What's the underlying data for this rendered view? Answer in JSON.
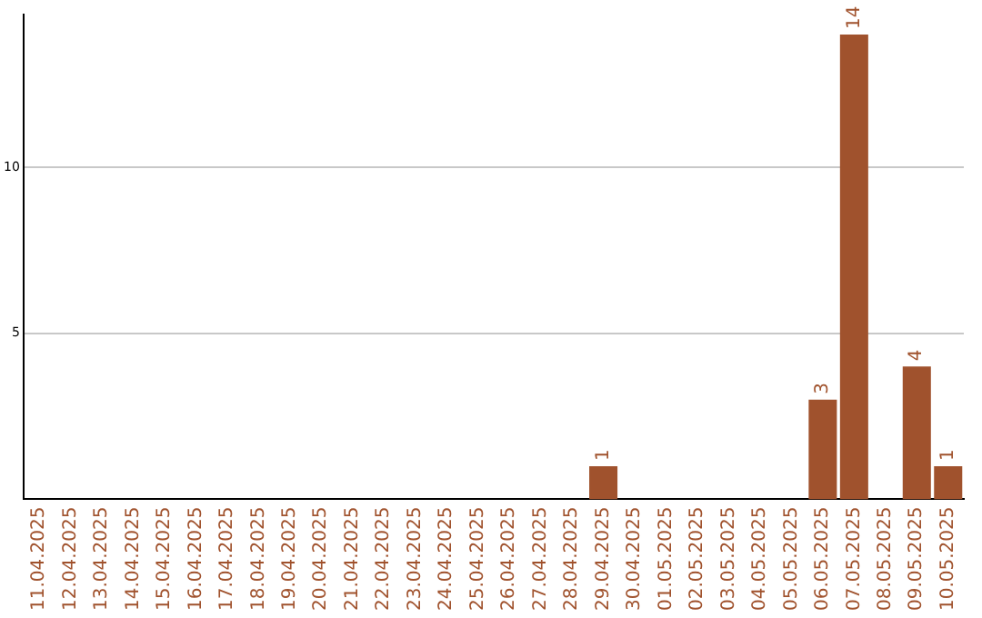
{
  "chart_data": {
    "type": "bar",
    "categories": [
      "11.04.2025",
      "12.04.2025",
      "13.04.2025",
      "14.04.2025",
      "15.04.2025",
      "16.04.2025",
      "17.04.2025",
      "18.04.2025",
      "19.04.2025",
      "20.04.2025",
      "21.04.2025",
      "22.04.2025",
      "23.04.2025",
      "24.04.2025",
      "25.04.2025",
      "26.04.2025",
      "27.04.2025",
      "28.04.2025",
      "29.04.2025",
      "30.04.2025",
      "01.05.2025",
      "02.05.2025",
      "03.05.2025",
      "04.05.2025",
      "05.05.2025",
      "06.05.2025",
      "07.05.2025",
      "08.05.2025",
      "09.05.2025",
      "10.05.2025"
    ],
    "values": [
      0,
      0,
      0,
      0,
      0,
      0,
      0,
      0,
      0,
      0,
      0,
      0,
      0,
      0,
      0,
      0,
      0,
      0,
      1,
      0,
      0,
      0,
      0,
      0,
      0,
      3,
      14,
      0,
      4,
      1
    ],
    "value_labels": [
      null,
      null,
      null,
      null,
      null,
      null,
      null,
      null,
      null,
      null,
      null,
      null,
      null,
      null,
      null,
      null,
      null,
      null,
      "1",
      null,
      null,
      null,
      null,
      null,
      null,
      "3",
      "14",
      null,
      "4",
      "1"
    ],
    "color": "#a0522d",
    "ylim": [
      0,
      14.6
    ],
    "yticks": [
      5,
      10
    ],
    "grid": "y",
    "legend": false
  }
}
